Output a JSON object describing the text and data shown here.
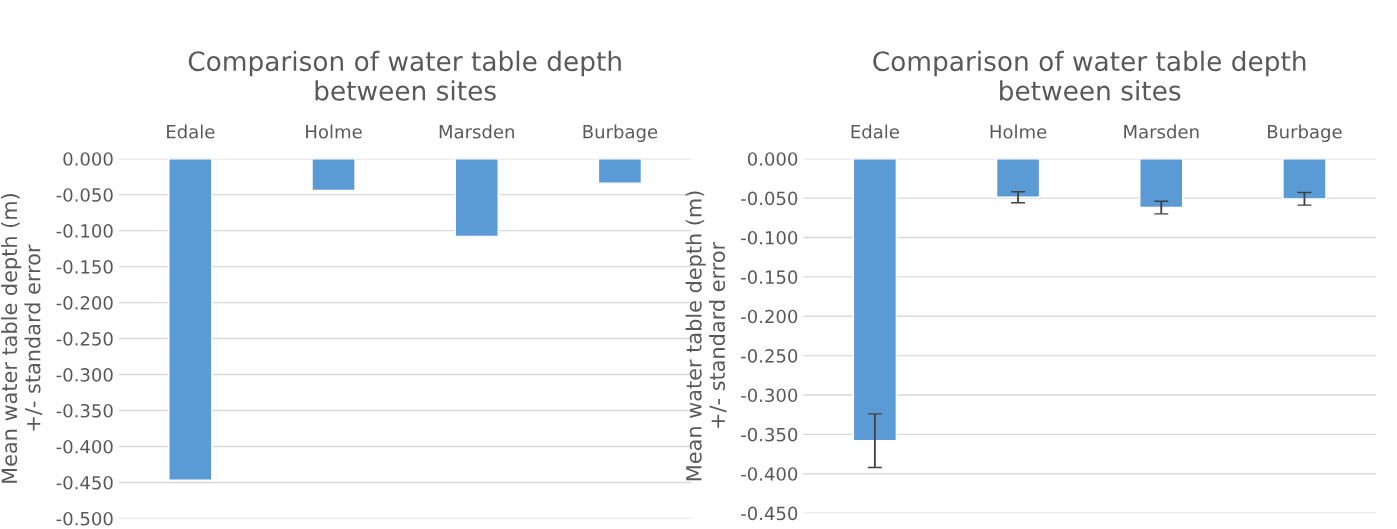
{
  "chart_data": [
    {
      "type": "bar",
      "title": "Comparison of water table depth\nbetween sites",
      "ylabel": "Mean water table depth (m)\n+/- standard error",
      "categories": [
        "Edale",
        "Holme",
        "Marsden",
        "Burbage"
      ],
      "series": [
        {
          "color": "#5b9bd5",
          "values": [
            -0.447,
            -0.044,
            -0.108,
            -0.034
          ]
        }
      ],
      "ylim": [
        -0.5,
        0
      ],
      "yticks": [
        {
          "value": 0,
          "label": "0.000"
        },
        {
          "value": -0.05,
          "label": "-0.050"
        },
        {
          "value": -0.1,
          "label": "-0.100"
        },
        {
          "value": -0.15,
          "label": "-0.150"
        },
        {
          "value": -0.2,
          "label": "-0.200"
        },
        {
          "value": -0.25,
          "label": "-0.250"
        },
        {
          "value": -0.3,
          "label": "-0.300"
        },
        {
          "value": -0.35,
          "label": "-0.350"
        },
        {
          "value": -0.4,
          "label": "-0.400"
        },
        {
          "value": -0.45,
          "label": "-0.450"
        },
        {
          "value": -0.5,
          "label": "-0.500"
        }
      ],
      "grid": "y"
    },
    {
      "type": "bar",
      "title": "Comparison of water table depth\nbetween sites",
      "ylabel": "Mean water table depth (m)\n+/- standard error",
      "categories": [
        "Edale",
        "Holme",
        "Marsden",
        "Burbage"
      ],
      "series": [
        {
          "color": "#5b9bd5",
          "values": [
            -0.358,
            -0.049,
            -0.062,
            -0.051
          ],
          "errors": [
            0.034,
            0.007,
            0.008,
            0.008
          ]
        }
      ],
      "ylim": [
        -0.45,
        0
      ],
      "yticks": [
        {
          "value": 0,
          "label": "0.000"
        },
        {
          "value": -0.05,
          "label": "-0.050"
        },
        {
          "value": -0.1,
          "label": "-0.100"
        },
        {
          "value": -0.15,
          "label": "-0.150"
        },
        {
          "value": -0.2,
          "label": "-0.200"
        },
        {
          "value": -0.25,
          "label": "-0.250"
        },
        {
          "value": -0.3,
          "label": "-0.300"
        },
        {
          "value": -0.35,
          "label": "-0.350"
        },
        {
          "value": -0.4,
          "label": "-0.400"
        },
        {
          "value": -0.45,
          "label": "-0.450"
        }
      ],
      "grid": "y"
    }
  ]
}
